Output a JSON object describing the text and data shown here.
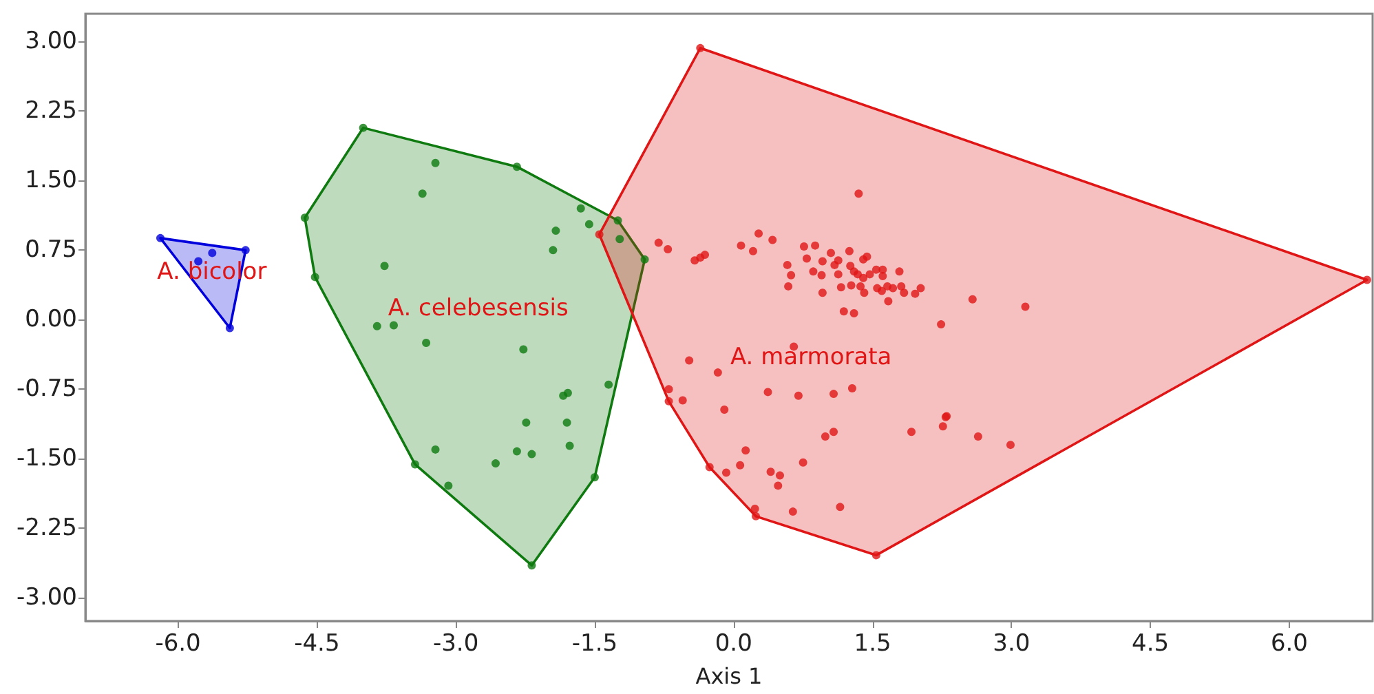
{
  "chart_data": {
    "type": "scatter",
    "xlabel": "Axis 1",
    "xlim": [
      -7.0,
      6.9
    ],
    "ylim": [
      -3.25,
      3.3
    ],
    "xticks": [
      {
        "value": -6,
        "label": "-6.0"
      },
      {
        "value": -4.5,
        "label": "-4.5"
      },
      {
        "value": -3,
        "label": "-3.0"
      },
      {
        "value": -1.5,
        "label": "-1.5"
      },
      {
        "value": 0,
        "label": "0.0"
      },
      {
        "value": 1.5,
        "label": "1.5"
      },
      {
        "value": 3,
        "label": "3.0"
      },
      {
        "value": 4.5,
        "label": "4.5"
      },
      {
        "value": 6,
        "label": "6.0"
      }
    ],
    "yticks": [
      {
        "value": -3,
        "label": "-3.00"
      },
      {
        "value": -2.25,
        "label": "-2.25"
      },
      {
        "value": -1.5,
        "label": "-1.50"
      },
      {
        "value": -0.75,
        "label": "-0.75"
      },
      {
        "value": 0,
        "label": "0.00"
      },
      {
        "value": 0.75,
        "label": "0.75"
      },
      {
        "value": 1.5,
        "label": "1.50"
      },
      {
        "value": 2.25,
        "label": "2.25"
      },
      {
        "value": 3,
        "label": "3.00"
      }
    ],
    "grid": false,
    "marker": "circle",
    "annotations": [
      "A. bicolor",
      "A. celebesensis",
      "A. marmorata"
    ],
    "series": [
      {
        "type": "area",
        "marker": "none",
        "color": "#0000dd",
        "x": [
          -6.19,
          -5.27,
          -5.44,
          -6.19
        ],
        "values": [
          0.88,
          0.75,
          -0.09,
          0.88
        ]
      },
      {
        "type": "area",
        "marker": "none",
        "color": "#0f7a0f",
        "x": [
          -4.0,
          -2.34,
          -1.25,
          -0.96,
          -1.5,
          -2.18,
          -3.44,
          -4.52,
          -4.63,
          -4.0
        ],
        "values": [
          2.07,
          1.65,
          1.07,
          0.65,
          -1.7,
          -2.65,
          -1.56,
          0.46,
          1.1,
          2.07
        ]
      },
      {
        "type": "area",
        "marker": "none",
        "color": "#e01515",
        "x": [
          -0.36,
          6.84,
          1.54,
          0.24,
          -0.26,
          -0.7,
          -1.45,
          -0.36
        ],
        "values": [
          2.93,
          0.43,
          -2.54,
          -2.12,
          -1.59,
          -0.88,
          0.92,
          2.93
        ]
      },
      {
        "color": "#0000dd",
        "x": [
          -6.19,
          -5.27,
          -5.44,
          -5.78,
          -5.63
        ],
        "values": [
          0.88,
          0.75,
          -0.09,
          0.63,
          0.72
        ]
      },
      {
        "color": "#0f7a0f",
        "x": [
          -4.0,
          -2.34,
          -1.25,
          -0.96,
          -1.5,
          -2.18,
          -3.44,
          -4.52,
          -4.63,
          -3.22,
          -3.36,
          -1.65,
          -1.56,
          -1.92,
          -1.95,
          -1.23,
          -3.77,
          -3.85,
          -3.67,
          -3.32,
          -2.27,
          -1.35,
          -1.79,
          -1.84,
          -2.24,
          -1.8,
          -1.77,
          -3.22,
          -2.34,
          -2.18,
          -2.57,
          -3.08
        ],
        "values": [
          2.07,
          1.65,
          1.07,
          0.65,
          -1.7,
          -2.65,
          -1.56,
          0.46,
          1.1,
          1.69,
          1.36,
          1.2,
          1.03,
          0.96,
          0.75,
          0.87,
          0.58,
          -0.07,
          -0.06,
          -0.25,
          -0.32,
          -0.7,
          -0.79,
          -0.82,
          -1.11,
          -1.11,
          -1.36,
          -1.4,
          -1.42,
          -1.45,
          -1.55,
          -1.79
        ]
      },
      {
        "color": "#e01515",
        "x": [
          -0.36,
          6.84,
          1.54,
          0.24,
          -0.26,
          -0.7,
          -1.45,
          1.35,
          -0.81,
          -0.71,
          -0.42,
          -0.31,
          -0.36,
          0.27,
          0.08,
          0.21,
          0.42,
          0.76,
          0.88,
          0.58,
          0.62,
          0.59,
          0.79,
          0.86,
          0.95,
          0.96,
          0.96,
          1.05,
          1.13,
          1.25,
          1.09,
          1.13,
          1.16,
          1.27,
          1.26,
          1.3,
          1.4,
          1.44,
          1.34,
          1.4,
          1.37,
          1.41,
          1.54,
          1.47,
          1.61,
          1.61,
          1.55,
          1.6,
          1.66,
          1.67,
          1.72,
          1.79,
          1.81,
          1.84,
          1.96,
          2.02,
          1.19,
          1.3,
          2.58,
          2.24,
          0.65,
          -0.48,
          3.15,
          2.3,
          -0.17,
          -0.7,
          -0.55,
          -0.1,
          0.37,
          0.7,
          1.08,
          1.28,
          0.99,
          1.08,
          1.92,
          2.26,
          2.29,
          2.64,
          2.99,
          0.13,
          0.07,
          -0.08,
          0.4,
          0.5,
          0.48,
          0.75,
          0.23,
          0.64,
          1.15
        ],
        "values": [
          2.93,
          0.43,
          -2.54,
          -2.12,
          -1.59,
          -0.88,
          0.92,
          1.36,
          0.83,
          0.76,
          0.64,
          0.7,
          0.67,
          0.93,
          0.8,
          0.74,
          0.86,
          0.79,
          0.8,
          0.59,
          0.48,
          0.36,
          0.66,
          0.52,
          0.48,
          0.29,
          0.63,
          0.72,
          0.64,
          0.74,
          0.59,
          0.49,
          0.35,
          0.37,
          0.58,
          0.52,
          0.65,
          0.68,
          0.49,
          0.45,
          0.36,
          0.29,
          0.54,
          0.49,
          0.54,
          0.47,
          0.34,
          0.31,
          0.36,
          0.2,
          0.34,
          0.52,
          0.36,
          0.29,
          0.28,
          0.34,
          0.09,
          0.07,
          0.22,
          -0.05,
          -0.29,
          -0.44,
          0.14,
          -1.04,
          -0.57,
          -0.75,
          -0.87,
          -0.97,
          -0.78,
          -0.82,
          -0.8,
          -0.74,
          -1.26,
          -1.21,
          -1.21,
          -1.15,
          -1.05,
          -1.26,
          -1.35,
          -1.41,
          -1.57,
          -1.65,
          -1.64,
          -1.68,
          -1.79,
          -1.54,
          -2.04,
          -2.07,
          -2.02
        ]
      }
    ]
  }
}
